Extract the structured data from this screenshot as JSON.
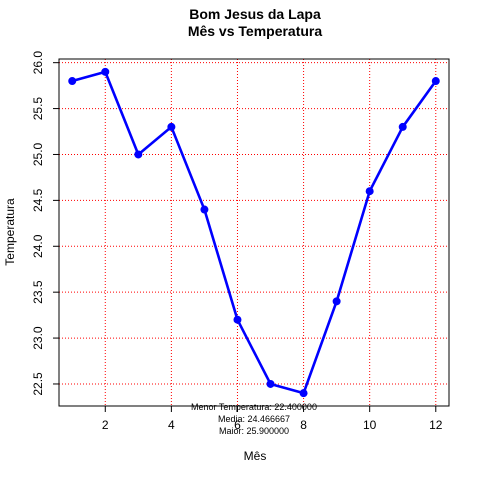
{
  "chart_data": {
    "type": "line",
    "title": "Bom Jesus da Lapa",
    "subtitle": "Mês vs Temperatura",
    "xlabel": "Mês",
    "ylabel": "Temperatura",
    "x": [
      1,
      2,
      3,
      4,
      5,
      6,
      7,
      8,
      9,
      10,
      11,
      12
    ],
    "series": [
      {
        "values": [
          25.8,
          25.9,
          25.0,
          25.3,
          24.4,
          23.2,
          22.5,
          22.4,
          23.4,
          24.6,
          25.3,
          25.8
        ],
        "color": "#0000ff"
      }
    ],
    "xlim": [
      0.6,
      12.4
    ],
    "ylim": [
      22.26,
      26.04
    ],
    "xticks": [
      2,
      4,
      6,
      8,
      10,
      12
    ],
    "yticks": [
      22.5,
      23.0,
      23.5,
      24.0,
      24.5,
      25.0,
      25.5,
      26.0
    ],
    "ytick_labels": [
      "22.5",
      "23.0",
      "23.5",
      "24.0",
      "24.5",
      "25.0",
      "25.5",
      "26.0"
    ],
    "grid": true,
    "grid_color": "#ff0000",
    "annotations": [
      "Menor Temperatura: 22.400000",
      "Media: 24.466667",
      "Maior: 25.900000"
    ]
  }
}
